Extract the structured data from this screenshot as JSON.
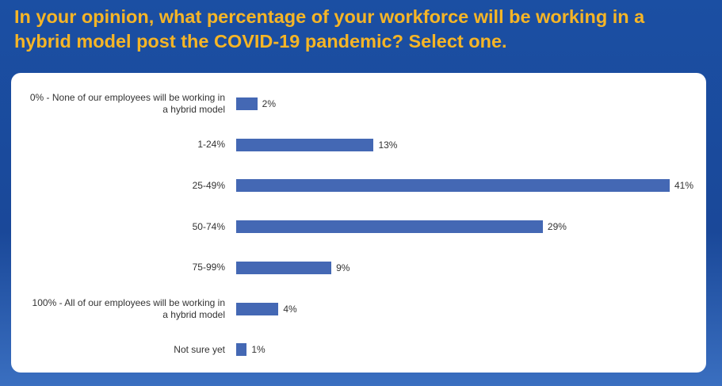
{
  "chart_data": {
    "type": "bar",
    "orientation": "horizontal",
    "title": "In your opinion, what percentage of your workforce will be working in a hybrid model post the COVID-19 pandemic? Select one.",
    "categories": [
      "0% - None of our employees will be working in a hybrid model",
      "1-24%",
      "25-49%",
      "50-74%",
      "75-99%",
      "100% - All of our employees will be working in a hybrid model",
      "Not sure yet"
    ],
    "values": [
      2,
      13,
      41,
      29,
      9,
      4,
      1
    ],
    "value_labels": [
      "2%",
      "13%",
      "41%",
      "29%",
      "9%",
      "4%",
      "1%"
    ],
    "color": "#4468b4"
  }
}
